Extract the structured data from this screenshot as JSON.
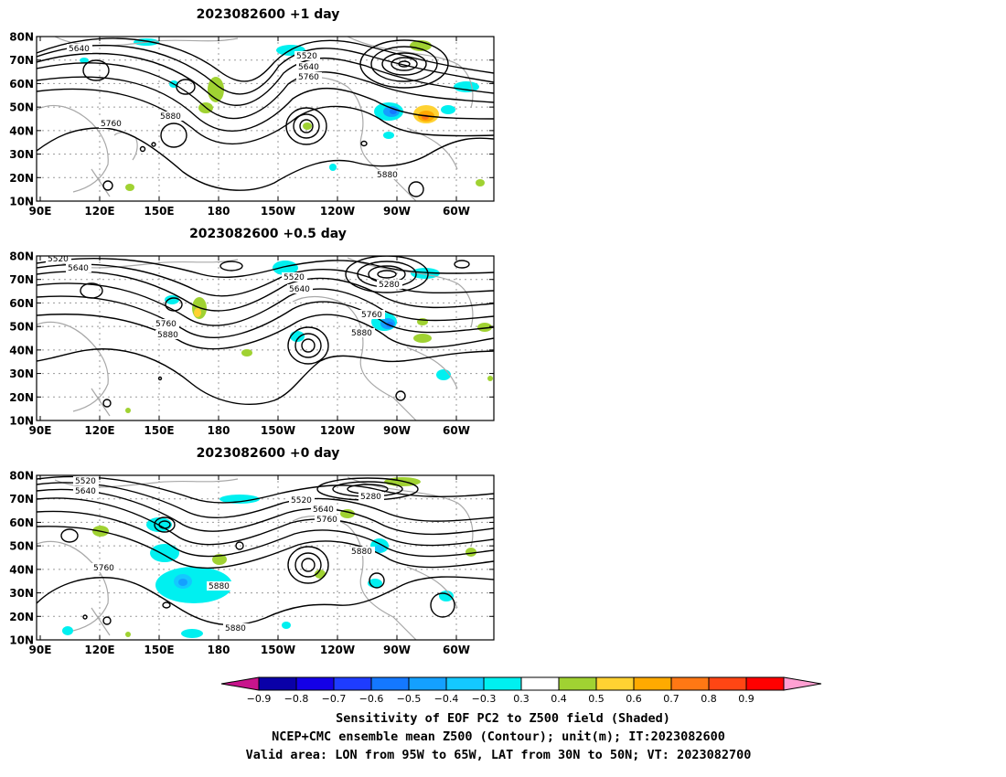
{
  "panels": [
    {
      "title": "2023082600 +1 day",
      "contour_labels": [
        "5640",
        "5520",
        "5640",
        "5760",
        "5760",
        "5880",
        "5880"
      ]
    },
    {
      "title": "2023082600 +0.5 day",
      "contour_labels": [
        "5520",
        "5640",
        "5520",
        "5280",
        "5640",
        "5760",
        "5880",
        "5760",
        "5880"
      ]
    },
    {
      "title": "2023082600 +0 day",
      "contour_labels": [
        "5520",
        "5640",
        "5520",
        "5280",
        "5640",
        "5760",
        "5880",
        "5760",
        "5880",
        "5880"
      ]
    }
  ],
  "axes": {
    "lat_ticks": [
      "80N",
      "70N",
      "60N",
      "50N",
      "40N",
      "30N",
      "20N",
      "10N"
    ],
    "lon_ticks": [
      "90E",
      "120E",
      "150E",
      "180",
      "150W",
      "120W",
      "90W",
      "60W"
    ]
  },
  "colorbar": {
    "labels": [
      "-0.9",
      "-0.8",
      "-0.7",
      "-0.6",
      "-0.5",
      "-0.4",
      "-0.3",
      "0.3",
      "0.4",
      "0.5",
      "0.6",
      "0.7",
      "0.8",
      "0.9"
    ],
    "colors": [
      "#0a00a8",
      "#1400e6",
      "#1e3cff",
      "#1478ff",
      "#14a0ff",
      "#14c8ff",
      "#00f0f0",
      "#ffffff",
      "#a0d232",
      "#ffd232",
      "#ffaa00",
      "#ff7814",
      "#ff4614",
      "#ff0000"
    ],
    "low_color": "#c8148c",
    "high_color": "#ffa0d2"
  },
  "caption": {
    "line1": "Sensitivity of EOF PC2 to Z500 field (Shaded)",
    "line2": "NCEP+CMC ensemble mean Z500 (Contour); unit(m); IT:2023082600",
    "line3": "Valid area: LON from 95W to 65W, LAT from 30N to 50N; VT: 2023082700"
  }
}
